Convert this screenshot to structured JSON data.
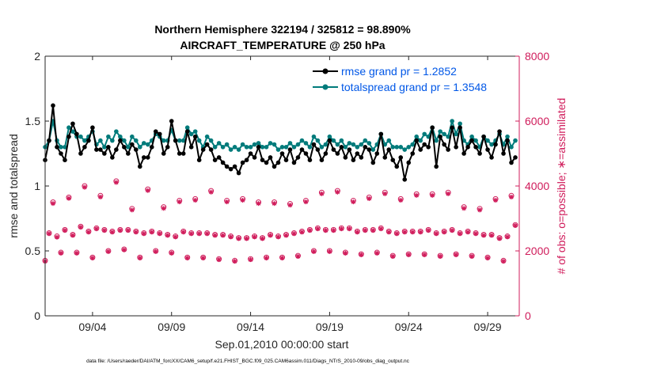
{
  "chart_data": {
    "type": "line",
    "title_line1": "Northern Hemisphere 322194 / 325812 = 98.890%",
    "title_line2": "AIRCRAFT_TEMPERATURE @ 250 hPa",
    "xlabel": "Sep.01,2010 00:00:00 start",
    "ylabel_left": "rmse and totalspread",
    "ylabel_right": "# of obs: o=possible; ∗=assimilated",
    "footnote": "data file: /Users/raeder/DAI/ATM_forcXX/CAM6_setup/f.e21.FHIST_BGC.f09_025.CAM6assim.011/Diags_NTrS_2010-09/obs_diag_output.nc",
    "xlim": [
      1.0,
      31.0
    ],
    "ylim_left": [
      0,
      2
    ],
    "ylim_right": [
      0,
      8000
    ],
    "x_ticks": [
      {
        "x": 4,
        "label": "09/04"
      },
      {
        "x": 9,
        "label": "09/09"
      },
      {
        "x": 14,
        "label": "09/14"
      },
      {
        "x": 19,
        "label": "09/19"
      },
      {
        "x": 24,
        "label": "09/24"
      },
      {
        "x": 29,
        "label": "09/29"
      }
    ],
    "y_ticks_left": [
      {
        "v": 0,
        "label": "0"
      },
      {
        "v": 0.5,
        "label": "0.5"
      },
      {
        "v": 1,
        "label": "1"
      },
      {
        "v": 1.5,
        "label": "1.5"
      },
      {
        "v": 2,
        "label": "2"
      }
    ],
    "y_ticks_right": [
      {
        "v": 0,
        "label": "0"
      },
      {
        "v": 2000,
        "label": "2000"
      },
      {
        "v": 4000,
        "label": "4000"
      },
      {
        "v": 6000,
        "label": "6000"
      },
      {
        "v": 8000,
        "label": "8000"
      }
    ],
    "x_start": 1.0,
    "x_step": 0.25,
    "series": [
      {
        "name": "rmse",
        "legend": "rmse grand pr = 1.2852",
        "color": "#000000",
        "values": [
          1.2,
          1.35,
          1.62,
          1.3,
          1.25,
          1.2,
          1.38,
          1.48,
          1.4,
          1.25,
          1.3,
          1.35,
          1.45,
          1.28,
          1.28,
          1.25,
          1.3,
          1.22,
          1.28,
          1.35,
          1.3,
          1.25,
          1.32,
          1.28,
          1.15,
          1.22,
          1.22,
          1.3,
          1.42,
          1.4,
          1.25,
          1.3,
          1.5,
          1.35,
          1.25,
          1.25,
          1.42,
          1.3,
          1.38,
          1.2,
          1.28,
          1.32,
          1.28,
          1.2,
          1.22,
          1.18,
          1.15,
          1.13,
          1.15,
          1.1,
          1.18,
          1.2,
          1.25,
          1.22,
          1.3,
          1.2,
          1.18,
          1.22,
          1.15,
          1.18,
          1.25,
          1.2,
          1.28,
          1.18,
          1.22,
          1.28,
          1.25,
          1.2,
          1.32,
          1.28,
          1.2,
          1.25,
          1.35,
          1.28,
          1.25,
          1.3,
          1.22,
          1.28,
          1.2,
          1.25,
          1.22,
          1.3,
          1.28,
          1.18,
          1.25,
          1.4,
          1.22,
          1.28,
          1.2,
          1.15,
          1.22,
          1.05,
          1.18,
          1.25,
          1.35,
          1.28,
          1.32,
          1.3,
          1.45,
          1.15,
          1.38,
          1.32,
          1.28,
          1.45,
          1.3,
          1.45,
          1.25,
          1.3,
          1.35,
          1.3,
          1.25,
          1.38,
          1.28,
          1.22,
          1.32,
          1.42,
          1.25,
          1.35,
          1.18,
          1.22
        ]
      },
      {
        "name": "totalspread",
        "legend": "totalspread grand pr = 1.3548",
        "color": "#007b7b",
        "values": [
          1.3,
          1.35,
          1.5,
          1.35,
          1.3,
          1.3,
          1.45,
          1.42,
          1.38,
          1.38,
          1.35,
          1.38,
          1.42,
          1.32,
          1.35,
          1.3,
          1.38,
          1.35,
          1.42,
          1.38,
          1.35,
          1.3,
          1.38,
          1.35,
          1.3,
          1.33,
          1.32,
          1.35,
          1.4,
          1.38,
          1.35,
          1.35,
          1.43,
          1.35,
          1.35,
          1.35,
          1.45,
          1.4,
          1.42,
          1.35,
          1.3,
          1.38,
          1.35,
          1.3,
          1.33,
          1.3,
          1.32,
          1.28,
          1.3,
          1.28,
          1.32,
          1.3,
          1.3,
          1.32,
          1.33,
          1.3,
          1.3,
          1.33,
          1.32,
          1.28,
          1.3,
          1.3,
          1.33,
          1.3,
          1.32,
          1.35,
          1.33,
          1.3,
          1.38,
          1.35,
          1.3,
          1.32,
          1.38,
          1.35,
          1.32,
          1.35,
          1.3,
          1.33,
          1.32,
          1.3,
          1.32,
          1.35,
          1.33,
          1.28,
          1.32,
          1.4,
          1.32,
          1.35,
          1.3,
          1.3,
          1.3,
          1.28,
          1.3,
          1.32,
          1.38,
          1.35,
          1.4,
          1.38,
          1.45,
          1.35,
          1.42,
          1.4,
          1.38,
          1.5,
          1.4,
          1.48,
          1.35,
          1.32,
          1.38,
          1.35,
          1.3,
          1.38,
          1.35,
          1.32,
          1.35,
          1.4,
          1.32,
          1.38,
          1.3,
          1.35
        ]
      },
      {
        "name": "obs_possible",
        "marker": "o",
        "color": "#d01c5b",
        "values": [
          1700,
          2550,
          3500,
          2450,
          1950,
          2650,
          3650,
          2500,
          1950,
          2750,
          4000,
          2600,
          1800,
          2700,
          3700,
          2650,
          2000,
          2600,
          4150,
          2650,
          2050,
          2650,
          3300,
          2600,
          1800,
          2550,
          3900,
          2600,
          2000,
          2550,
          3350,
          2500,
          1950,
          2450,
          3550,
          2600,
          1800,
          2550,
          3600,
          2550,
          1800,
          2550,
          3850,
          2500,
          1750,
          2500,
          3550,
          2450,
          1700,
          2400,
          3600,
          2400,
          1750,
          2450,
          3500,
          2400,
          1800,
          2500,
          3500,
          2450,
          1800,
          2500,
          3450,
          2550,
          1850,
          2600,
          3550,
          2650,
          2000,
          2700,
          3800,
          2650,
          2000,
          2650,
          3850,
          2700,
          1950,
          2700,
          3550,
          2600,
          1900,
          2650,
          3650,
          2650,
          1950,
          2700,
          3800,
          2600,
          1850,
          2550,
          3600,
          2600,
          1900,
          2600,
          3750,
          2600,
          1900,
          2650,
          3750,
          2550,
          1850,
          2600,
          3800,
          2650,
          1900,
          2550,
          3350,
          2600,
          1850,
          2550,
          3300,
          2500,
          1800,
          2500,
          3600,
          2400,
          1700,
          2450,
          3700,
          2800
        ]
      },
      {
        "name": "obs_assimilated",
        "marker": "*",
        "color": "#d01c5b",
        "values": [
          1680,
          2530,
          3460,
          2420,
          1930,
          2630,
          3620,
          2480,
          1930,
          2730,
          3960,
          2580,
          1780,
          2680,
          3660,
          2630,
          1980,
          2580,
          4110,
          2630,
          2030,
          2630,
          3260,
          2580,
          1780,
          2530,
          3860,
          2580,
          1980,
          2530,
          3310,
          2480,
          1930,
          2430,
          3510,
          2580,
          1780,
          2530,
          3560,
          2530,
          1780,
          2530,
          3810,
          2480,
          1730,
          2480,
          3510,
          2430,
          1680,
          2380,
          3560,
          2380,
          1730,
          2430,
          3460,
          2380,
          1780,
          2480,
          3460,
          2430,
          1780,
          2480,
          3410,
          2530,
          1830,
          2580,
          3510,
          2630,
          1980,
          2680,
          3760,
          2630,
          1980,
          2630,
          3810,
          2680,
          1930,
          2680,
          3510,
          2580,
          1880,
          2630,
          3610,
          2630,
          1930,
          2680,
          3760,
          2580,
          1830,
          2530,
          3560,
          2580,
          1880,
          2580,
          3710,
          2580,
          1880,
          2630,
          3710,
          2530,
          1830,
          2580,
          3760,
          2630,
          1880,
          2530,
          3310,
          2580,
          1830,
          2530,
          3260,
          2480,
          1780,
          2480,
          3560,
          2380,
          1680,
          2430,
          3660,
          2780
        ]
      }
    ]
  }
}
